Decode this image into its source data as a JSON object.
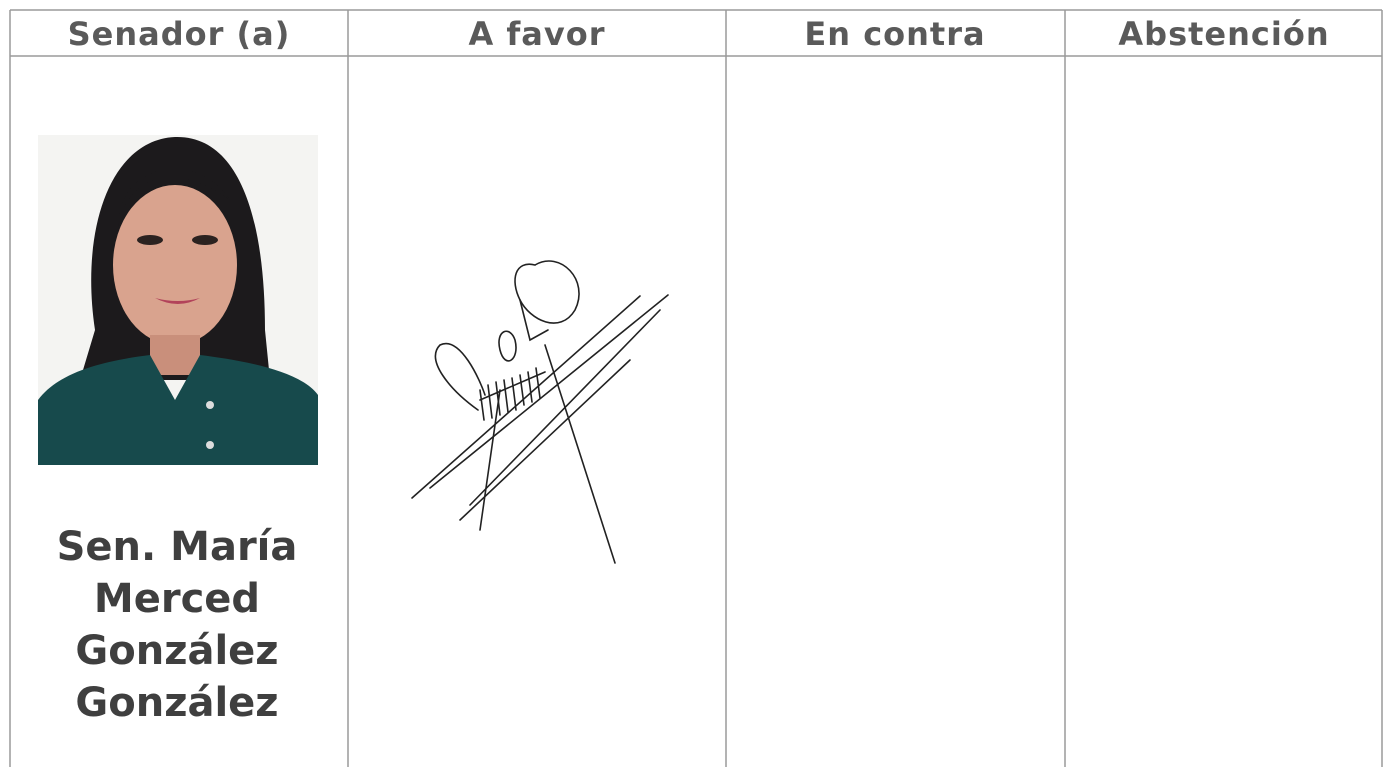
{
  "table": {
    "headers": [
      "Senador (a)",
      "A favor",
      "En contra",
      "Abstención"
    ],
    "rows": [
      {
        "senator_name_lines": [
          "Sen. María",
          "Merced",
          "González",
          "González"
        ]
      }
    ]
  }
}
